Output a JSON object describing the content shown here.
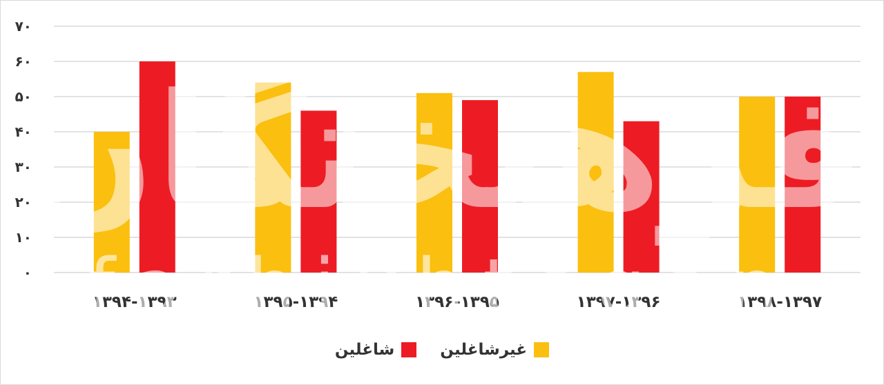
{
  "chart_data": {
    "type": "bar",
    "categories": [
      "۱۳۹۴-۱۳۹۳",
      "۱۳۹۵-۱۳۹۴",
      "۱۳۹۶-۱۳۹۵",
      "۱۳۹۷-۱۳۹۶",
      "۱۳۹۸-۱۳۹۷"
    ],
    "series": [
      {
        "name": "غیرشاغلین",
        "values": [
          40,
          54,
          51,
          57,
          50
        ],
        "color": "#fbbf0f"
      },
      {
        "name": "شاغلین",
        "values": [
          60,
          46,
          49,
          43,
          50
        ],
        "color": "#ed1c24"
      }
    ],
    "ylim": [
      0,
      70
    ],
    "y_ticks": [
      0,
      10,
      20,
      30,
      40,
      50,
      60,
      70
    ],
    "y_tick_labels": [
      "۰",
      "۱۰",
      "۲۰",
      "۳۰",
      "۴۰",
      "۵۰",
      "۶۰",
      "۷۰"
    ],
    "grid": true,
    "legend_position": "bottom"
  },
  "watermark": {
    "logo_text": "فرهیختگان",
    "text": "farhikhtegan"
  }
}
